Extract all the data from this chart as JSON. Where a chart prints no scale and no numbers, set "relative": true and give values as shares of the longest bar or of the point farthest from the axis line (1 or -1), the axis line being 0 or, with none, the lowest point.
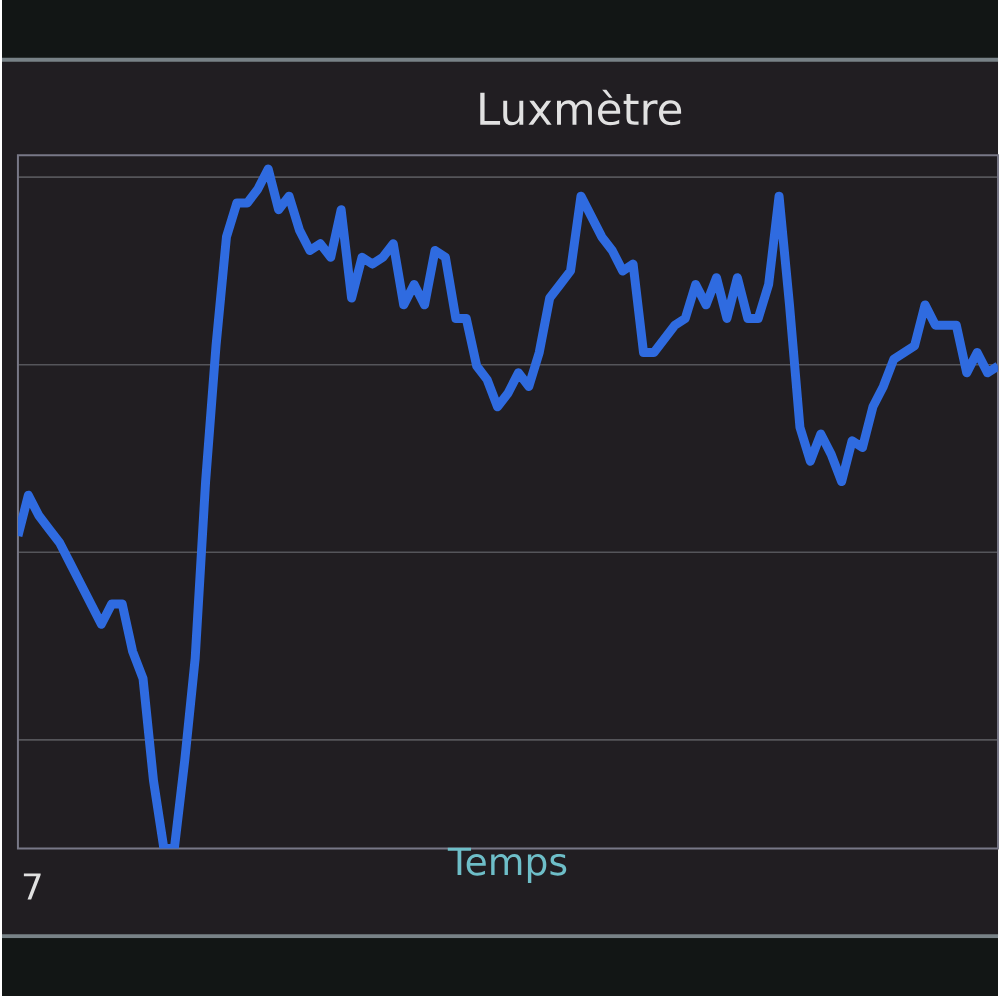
{
  "chart_data": {
    "type": "line",
    "title": "Luxmètre",
    "xlabel": "Temps",
    "relative": true,
    "grid": "y",
    "marker": "none",
    "line_style": "solid",
    "annotations": [
      "7"
    ],
    "categories": [
      null,
      null,
      null,
      null,
      null,
      null,
      null,
      null,
      null,
      null,
      null,
      null,
      null,
      null,
      null,
      null,
      null,
      null,
      null,
      null,
      null,
      null,
      null,
      null,
      null,
      null,
      null,
      null,
      null,
      null,
      null,
      null,
      null,
      null,
      null,
      null,
      null,
      null,
      null,
      null,
      null,
      null,
      null,
      null,
      null,
      null,
      null,
      null,
      null,
      null,
      null,
      null,
      null,
      null,
      null,
      null,
      null,
      null,
      null,
      null,
      null,
      null,
      null,
      null,
      null,
      null,
      null,
      null,
      null,
      null,
      null,
      null,
      null,
      null,
      null,
      null,
      null,
      null,
      null,
      null,
      null,
      null,
      null,
      null,
      null,
      null,
      null,
      null,
      null,
      null,
      null,
      null,
      null,
      null,
      null
    ],
    "series": [
      {
        "color": "#2f6be0",
        "values": [
          0.46,
          0.52,
          0.49,
          0.47,
          0.45,
          0.42,
          0.39,
          0.36,
          0.33,
          0.36,
          0.36,
          0.29,
          0.25,
          0.1,
          0.0,
          0.0,
          0.13,
          0.28,
          0.54,
          0.74,
          0.9,
          0.95,
          0.95,
          0.97,
          1.0,
          0.94,
          0.96,
          0.91,
          0.88,
          0.89,
          0.87,
          0.94,
          0.81,
          0.87,
          0.86,
          0.87,
          0.89,
          0.8,
          0.83,
          0.8,
          0.88,
          0.87,
          0.78,
          0.78,
          0.71,
          0.69,
          0.65,
          0.67,
          0.7,
          0.68,
          0.73,
          0.81,
          0.83,
          0.85,
          0.96,
          0.93,
          0.9,
          0.88,
          0.85,
          0.86,
          0.73,
          0.73,
          0.75,
          0.77,
          0.78,
          0.83,
          0.8,
          0.84,
          0.78,
          0.84,
          0.78,
          0.78,
          0.83,
          0.96,
          0.8,
          0.62,
          0.57,
          0.61,
          0.58,
          0.54,
          0.6,
          0.59,
          0.65,
          0.68,
          0.72,
          0.73,
          0.74,
          0.8,
          0.77,
          0.77,
          0.77,
          0.7,
          0.73,
          0.7,
          0.71
        ]
      }
    ]
  }
}
